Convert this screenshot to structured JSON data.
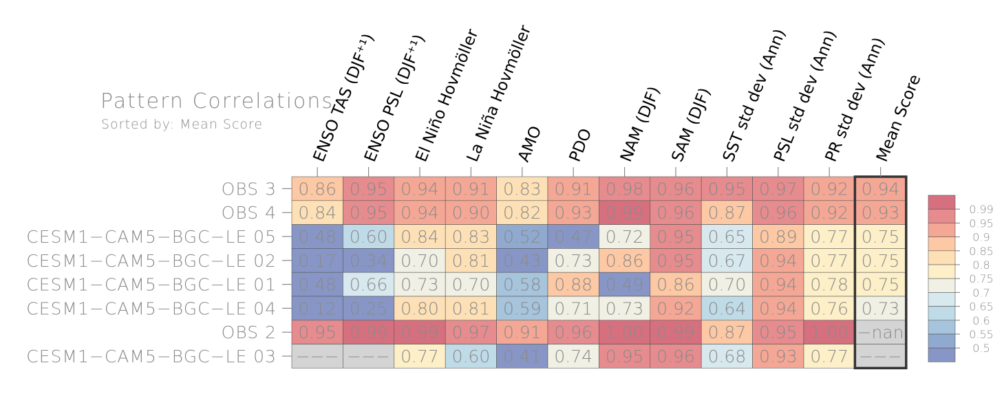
{
  "chart_data": {
    "type": "heatmap",
    "title": "Pattern Correlations",
    "subtitle": "Sorted by: Mean Score",
    "columns": [
      "ENSO TAS (DJF⁺¹)",
      "ENSO PSL (DJF⁺¹)",
      "El Niño Hovmöller",
      "La Niña Hovmöller",
      "AMO",
      "PDO",
      "NAM (DJF)",
      "SAM (DJF)",
      "SST std dev (Ann)",
      "PSL std dev (Ann)",
      "PR std dev (Ann)",
      "Mean Score"
    ],
    "rows": [
      {
        "name": "OBS 3",
        "values": [
          "0.86",
          "0.95",
          "0.94",
          "0.91",
          "0.83",
          "0.91",
          "0.98",
          "0.96",
          "0.95",
          "0.97",
          "0.92",
          "0.94"
        ]
      },
      {
        "name": "OBS 4",
        "values": [
          "0.84",
          "0.95",
          "0.94",
          "0.90",
          "0.82",
          "0.93",
          "0.99",
          "0.96",
          "0.87",
          "0.96",
          "0.92",
          "0.93"
        ]
      },
      {
        "name": "CESM1−CAM5−BGC−LE 05",
        "values": [
          "0.48",
          "0.60",
          "0.84",
          "0.83",
          "0.52",
          "0.47",
          "0.72",
          "0.95",
          "0.65",
          "0.89",
          "0.77",
          "0.75"
        ]
      },
      {
        "name": "CESM1−CAM5−BGC−LE 02",
        "values": [
          "0.17",
          "0.34",
          "0.70",
          "0.81",
          "0.43",
          "0.73",
          "0.86",
          "0.95",
          "0.67",
          "0.94",
          "0.77",
          "0.75"
        ]
      },
      {
        "name": "CESM1−CAM5−BGC−LE 01",
        "values": [
          "0.48",
          "0.66",
          "0.73",
          "0.70",
          "0.58",
          "0.88",
          "0.49",
          "0.86",
          "0.70",
          "0.94",
          "0.78",
          "0.75"
        ]
      },
      {
        "name": "CESM1−CAM5−BGC−LE 04",
        "values": [
          "0.12",
          "0.25",
          "0.80",
          "0.81",
          "0.59",
          "0.71",
          "0.73",
          "0.92",
          "0.64",
          "0.94",
          "0.76",
          "0.73"
        ]
      },
      {
        "name": "OBS 2",
        "values": [
          "0.95",
          "0.99",
          "0.99",
          "0.97",
          "0.91",
          "0.96",
          "1.00",
          "0.99",
          "0.87",
          "0.95",
          "1.00",
          "−nan"
        ]
      },
      {
        "name": "CESM1−CAM5−BGC−LE 03",
        "values": [
          "−−−",
          "−−−",
          "0.77",
          "0.60",
          "0.41",
          "0.74",
          "0.95",
          "0.96",
          "0.68",
          "0.93",
          "0.77",
          "−−−"
        ]
      }
    ],
    "highlighted_column": "Mean Score",
    "legend_labels": [
      "0.99",
      "0.95",
      "0.9",
      "0.85",
      "0.8",
      "0.75",
      "0.7",
      "0.65",
      "0.6",
      "0.55",
      "0.5"
    ],
    "colors": {
      "ge_099": "#d6707f",
      "ge_095": "#e68b8e",
      "ge_090": "#f5a795",
      "ge_085": "#fdc8a4",
      "ge_080": "#fde0b5",
      "ge_075": "#fdf0c8",
      "ge_070": "#f0f0e4",
      "ge_065": "#d7e8ee",
      "ge_060": "#c0dbe8",
      "ge_055": "#a6c4dc",
      "ge_050": "#8fa9cf",
      "lt_050": "#8796c6",
      "missing": "#d4d4d4"
    }
  }
}
